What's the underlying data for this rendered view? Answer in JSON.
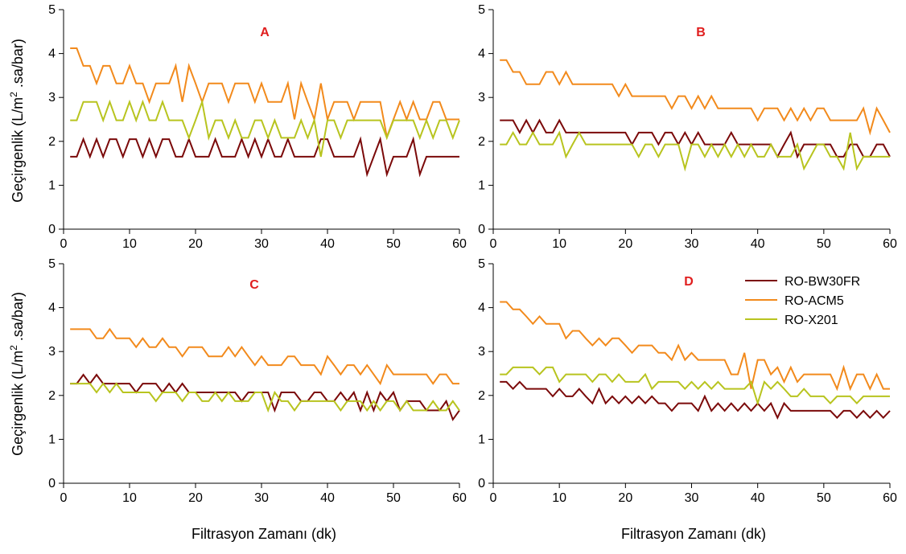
{
  "figure": {
    "xlabel": "Filtrasyon Zamanı (dk)",
    "ylabel_prefix": "Geçirgenlik (L/m",
    "ylabel_sup": "2",
    "ylabel_suffix": " .sa/bar)"
  },
  "colors": {
    "RO-BW30FR": "#7b0a0a",
    "RO-ACM5": "#f28a1c",
    "RO-X201": "#b8c41f",
    "panel_label": "#e01e1e",
    "axis": "#000000"
  },
  "legend": {
    "placement": "panel-D-top-right",
    "entries": [
      "RO-BW30FR",
      "RO-ACM5",
      "RO-X201"
    ]
  },
  "chart_data": [
    {
      "type": "line",
      "panel": "A",
      "title": "A",
      "xlim": [
        0,
        60
      ],
      "ylim": [
        0,
        5
      ],
      "xticks": [
        0,
        10,
        20,
        30,
        40,
        50,
        60
      ],
      "yticks": [
        0,
        1,
        2,
        3,
        4,
        5
      ],
      "grid": false,
      "x": [
        1,
        2,
        3,
        4,
        5,
        6,
        7,
        8,
        9,
        10,
        11,
        12,
        13,
        14,
        15,
        16,
        17,
        18,
        19,
        20,
        21,
        22,
        23,
        24,
        25,
        26,
        27,
        28,
        29,
        30,
        31,
        32,
        33,
        34,
        35,
        36,
        37,
        38,
        39,
        40,
        41,
        42,
        43,
        44,
        45,
        46,
        47,
        48,
        49,
        50,
        51,
        52,
        53,
        54,
        55,
        56,
        57,
        58,
        59,
        60
      ],
      "series": [
        {
          "name": "RO-BW30FR",
          "values": [
            1.65,
            1.65,
            2.05,
            1.65,
            2.05,
            1.65,
            2.05,
            2.05,
            1.65,
            2.05,
            2.05,
            1.65,
            2.05,
            1.65,
            2.05,
            2.05,
            1.65,
            1.65,
            2.05,
            1.65,
            1.65,
            1.65,
            2.05,
            1.65,
            1.65,
            1.65,
            2.05,
            1.65,
            2.05,
            1.65,
            2.05,
            1.65,
            1.65,
            2.05,
            1.65,
            1.65,
            1.65,
            1.65,
            2.05,
            2.05,
            1.65,
            1.65,
            1.65,
            1.65,
            2.05,
            1.25,
            1.65,
            2.05,
            1.25,
            1.65,
            1.65,
            1.65,
            2.05,
            1.25,
            1.65,
            1.65,
            1.65,
            1.65,
            1.65,
            1.65
          ]
        },
        {
          "name": "RO-ACM5",
          "values": [
            4.12,
            4.12,
            3.72,
            3.72,
            3.32,
            3.72,
            3.72,
            3.32,
            3.32,
            3.72,
            3.32,
            3.32,
            2.9,
            3.32,
            3.32,
            3.32,
            3.72,
            2.9,
            3.72,
            3.32,
            2.9,
            3.32,
            3.32,
            3.32,
            2.9,
            3.32,
            3.32,
            3.32,
            2.9,
            3.32,
            2.9,
            2.9,
            2.9,
            3.32,
            2.5,
            3.32,
            2.9,
            2.5,
            3.32,
            2.5,
            2.9,
            2.9,
            2.9,
            2.5,
            2.9,
            2.9,
            2.9,
            2.9,
            2.1,
            2.5,
            2.9,
            2.5,
            2.9,
            2.5,
            2.5,
            2.9,
            2.9,
            2.5,
            2.5,
            2.5
          ]
        },
        {
          "name": "RO-X201",
          "values": [
            2.48,
            2.48,
            2.9,
            2.9,
            2.9,
            2.48,
            2.9,
            2.48,
            2.48,
            2.9,
            2.48,
            2.9,
            2.48,
            2.48,
            2.9,
            2.48,
            2.48,
            2.48,
            2.08,
            2.48,
            2.9,
            2.08,
            2.48,
            2.48,
            2.08,
            2.48,
            2.08,
            2.08,
            2.48,
            2.48,
            2.08,
            2.48,
            2.08,
            2.08,
            2.08,
            2.48,
            2.08,
            2.48,
            1.65,
            2.48,
            2.48,
            2.08,
            2.48,
            2.48,
            2.48,
            2.48,
            2.48,
            2.48,
            2.08,
            2.48,
            2.48,
            2.48,
            2.48,
            2.08,
            2.48,
            2.08,
            2.48,
            2.48,
            2.08,
            2.48
          ]
        }
      ]
    },
    {
      "type": "line",
      "panel": "B",
      "title": "B",
      "xlim": [
        0,
        60
      ],
      "ylim": [
        0,
        5
      ],
      "xticks": [
        0,
        10,
        20,
        30,
        40,
        50,
        60
      ],
      "yticks": [
        0,
        1,
        2,
        3,
        4,
        5
      ],
      "grid": false,
      "x": [
        1,
        2,
        3,
        4,
        5,
        6,
        7,
        8,
        9,
        10,
        11,
        12,
        13,
        14,
        15,
        16,
        17,
        18,
        19,
        20,
        21,
        22,
        23,
        24,
        25,
        26,
        27,
        28,
        29,
        30,
        31,
        32,
        33,
        34,
        35,
        36,
        37,
        38,
        39,
        40,
        41,
        42,
        43,
        44,
        45,
        46,
        47,
        48,
        49,
        50,
        51,
        52,
        53,
        54,
        55,
        56,
        57,
        58,
        59,
        60
      ],
      "series": [
        {
          "name": "RO-BW30FR",
          "values": [
            2.48,
            2.48,
            2.48,
            2.2,
            2.48,
            2.2,
            2.48,
            2.2,
            2.2,
            2.48,
            2.2,
            2.2,
            2.2,
            2.2,
            2.2,
            2.2,
            2.2,
            2.2,
            2.2,
            2.2,
            1.93,
            2.2,
            2.2,
            2.2,
            1.93,
            2.2,
            2.2,
            1.93,
            2.2,
            1.93,
            2.2,
            1.93,
            1.93,
            1.93,
            1.93,
            2.2,
            1.93,
            1.93,
            1.93,
            1.93,
            1.93,
            1.93,
            1.65,
            1.93,
            2.2,
            1.65,
            1.93,
            1.93,
            1.93,
            1.93,
            1.93,
            1.65,
            1.65,
            1.93,
            1.93,
            1.65,
            1.65,
            1.93,
            1.93,
            1.65
          ]
        },
        {
          "name": "RO-ACM5",
          "values": [
            3.85,
            3.85,
            3.58,
            3.58,
            3.3,
            3.3,
            3.3,
            3.58,
            3.58,
            3.3,
            3.58,
            3.3,
            3.3,
            3.3,
            3.3,
            3.3,
            3.3,
            3.3,
            3.03,
            3.3,
            3.03,
            3.03,
            3.03,
            3.03,
            3.03,
            3.03,
            2.75,
            3.03,
            3.03,
            2.75,
            3.03,
            2.75,
            3.03,
            2.75,
            2.75,
            2.75,
            2.75,
            2.75,
            2.75,
            2.48,
            2.75,
            2.75,
            2.75,
            2.48,
            2.75,
            2.48,
            2.75,
            2.48,
            2.75,
            2.75,
            2.48,
            2.48,
            2.48,
            2.48,
            2.48,
            2.75,
            2.2,
            2.75,
            2.48,
            2.2
          ]
        },
        {
          "name": "RO-X201",
          "values": [
            1.93,
            1.93,
            2.2,
            1.93,
            1.93,
            2.2,
            1.93,
            1.93,
            1.93,
            2.2,
            1.65,
            1.93,
            2.2,
            1.93,
            1.93,
            1.93,
            1.93,
            1.93,
            1.93,
            1.93,
            1.93,
            1.65,
            1.93,
            1.93,
            1.65,
            1.93,
            1.93,
            1.93,
            1.38,
            1.93,
            1.93,
            1.65,
            1.93,
            1.65,
            1.93,
            1.65,
            1.93,
            1.65,
            1.93,
            1.65,
            1.65,
            1.93,
            1.65,
            1.65,
            1.65,
            1.93,
            1.38,
            1.65,
            1.93,
            1.93,
            1.65,
            1.65,
            1.38,
            2.2,
            1.38,
            1.65,
            1.65,
            1.65,
            1.65,
            1.65
          ]
        }
      ]
    },
    {
      "type": "line",
      "panel": "C",
      "title": "C",
      "xlim": [
        0,
        60
      ],
      "ylim": [
        0,
        5
      ],
      "xticks": [
        0,
        10,
        20,
        30,
        40,
        50,
        60
      ],
      "yticks": [
        0,
        1,
        2,
        3,
        4,
        5
      ],
      "grid": false,
      "x": [
        1,
        2,
        3,
        4,
        5,
        6,
        7,
        8,
        9,
        10,
        11,
        12,
        13,
        14,
        15,
        16,
        17,
        18,
        19,
        20,
        21,
        22,
        23,
        24,
        25,
        26,
        27,
        28,
        29,
        30,
        31,
        32,
        33,
        34,
        35,
        36,
        37,
        38,
        39,
        40,
        41,
        42,
        43,
        44,
        45,
        46,
        47,
        48,
        49,
        50,
        51,
        52,
        53,
        54,
        55,
        56,
        57,
        58,
        59,
        60
      ],
      "series": [
        {
          "name": "RO-BW30FR",
          "values": [
            2.27,
            2.27,
            2.47,
            2.27,
            2.47,
            2.27,
            2.27,
            2.27,
            2.27,
            2.27,
            2.07,
            2.27,
            2.27,
            2.27,
            2.07,
            2.27,
            2.07,
            2.27,
            2.07,
            2.07,
            2.07,
            2.07,
            2.07,
            2.07,
            2.07,
            2.07,
            1.87,
            2.07,
            2.07,
            2.07,
            2.07,
            1.66,
            2.07,
            2.07,
            2.07,
            1.87,
            1.87,
            2.07,
            2.07,
            1.87,
            1.87,
            2.07,
            1.87,
            2.07,
            1.66,
            2.07,
            1.66,
            2.07,
            1.87,
            2.07,
            1.66,
            1.87,
            1.87,
            1.87,
            1.66,
            1.66,
            1.66,
            1.87,
            1.45,
            1.66
          ]
        },
        {
          "name": "RO-ACM5",
          "values": [
            3.51,
            3.51,
            3.51,
            3.51,
            3.3,
            3.3,
            3.51,
            3.3,
            3.3,
            3.3,
            3.1,
            3.3,
            3.1,
            3.1,
            3.3,
            3.1,
            3.1,
            2.89,
            3.1,
            3.1,
            3.1,
            2.89,
            2.89,
            2.89,
            3.1,
            2.89,
            3.1,
            2.89,
            2.69,
            2.89,
            2.69,
            2.69,
            2.69,
            2.89,
            2.89,
            2.69,
            2.69,
            2.69,
            2.48,
            2.89,
            2.69,
            2.48,
            2.69,
            2.69,
            2.48,
            2.69,
            2.48,
            2.27,
            2.69,
            2.48,
            2.48,
            2.48,
            2.48,
            2.48,
            2.48,
            2.27,
            2.48,
            2.48,
            2.27,
            2.27
          ]
        },
        {
          "name": "RO-X201",
          "values": [
            2.27,
            2.27,
            2.27,
            2.27,
            2.07,
            2.27,
            2.07,
            2.27,
            2.07,
            2.07,
            2.07,
            2.07,
            2.07,
            1.87,
            2.07,
            2.07,
            2.07,
            1.87,
            2.07,
            2.07,
            1.87,
            1.87,
            2.07,
            1.87,
            2.07,
            1.87,
            1.87,
            1.87,
            2.07,
            2.07,
            1.66,
            2.07,
            1.87,
            1.87,
            1.66,
            1.87,
            1.87,
            1.87,
            1.87,
            1.87,
            1.87,
            1.66,
            1.87,
            1.87,
            1.87,
            1.66,
            1.87,
            1.66,
            1.87,
            1.87,
            1.66,
            1.87,
            1.66,
            1.66,
            1.66,
            1.87,
            1.66,
            1.66,
            1.87,
            1.66
          ]
        }
      ]
    },
    {
      "type": "line",
      "panel": "D",
      "title": "D",
      "xlim": [
        0,
        60
      ],
      "ylim": [
        0,
        5
      ],
      "xticks": [
        0,
        10,
        20,
        30,
        40,
        50,
        60
      ],
      "yticks": [
        0,
        1,
        2,
        3,
        4,
        5
      ],
      "grid": false,
      "x": [
        1,
        2,
        3,
        4,
        5,
        6,
        7,
        8,
        9,
        10,
        11,
        12,
        13,
        14,
        15,
        16,
        17,
        18,
        19,
        20,
        21,
        22,
        23,
        24,
        25,
        26,
        27,
        28,
        29,
        30,
        31,
        32,
        33,
        34,
        35,
        36,
        37,
        38,
        39,
        40,
        41,
        42,
        43,
        44,
        45,
        46,
        47,
        48,
        49,
        50,
        51,
        52,
        53,
        54,
        55,
        56,
        57,
        58,
        59,
        60
      ],
      "series": [
        {
          "name": "RO-BW30FR",
          "values": [
            2.31,
            2.31,
            2.15,
            2.31,
            2.15,
            2.15,
            2.15,
            2.15,
            1.98,
            2.15,
            1.98,
            1.98,
            2.15,
            1.98,
            1.82,
            2.15,
            1.82,
            1.98,
            1.82,
            1.98,
            1.82,
            1.98,
            1.82,
            1.98,
            1.82,
            1.82,
            1.65,
            1.82,
            1.82,
            1.82,
            1.65,
            1.98,
            1.65,
            1.82,
            1.65,
            1.82,
            1.65,
            1.82,
            1.65,
            1.82,
            1.65,
            1.82,
            1.49,
            1.82,
            1.65,
            1.65,
            1.65,
            1.65,
            1.65,
            1.65,
            1.65,
            1.49,
            1.65,
            1.65,
            1.49,
            1.65,
            1.49,
            1.65,
            1.49,
            1.65
          ]
        },
        {
          "name": "RO-ACM5",
          "values": [
            4.13,
            4.13,
            3.96,
            3.96,
            3.8,
            3.63,
            3.8,
            3.63,
            3.63,
            3.63,
            3.3,
            3.47,
            3.47,
            3.3,
            3.14,
            3.3,
            3.14,
            3.3,
            3.3,
            3.14,
            2.97,
            3.14,
            3.14,
            3.14,
            2.97,
            2.97,
            2.81,
            3.14,
            2.81,
            2.97,
            2.81,
            2.81,
            2.81,
            2.81,
            2.81,
            2.48,
            2.48,
            2.97,
            2.15,
            2.81,
            2.81,
            2.48,
            2.64,
            2.31,
            2.64,
            2.31,
            2.48,
            2.48,
            2.48,
            2.48,
            2.48,
            2.15,
            2.64,
            2.15,
            2.48,
            2.48,
            2.15,
            2.48,
            2.15,
            2.15
          ]
        },
        {
          "name": "RO-X201",
          "values": [
            2.48,
            2.48,
            2.64,
            2.64,
            2.64,
            2.64,
            2.48,
            2.64,
            2.64,
            2.31,
            2.48,
            2.48,
            2.48,
            2.48,
            2.31,
            2.48,
            2.48,
            2.31,
            2.48,
            2.31,
            2.31,
            2.31,
            2.48,
            2.15,
            2.31,
            2.31,
            2.31,
            2.31,
            2.15,
            2.31,
            2.15,
            2.31,
            2.15,
            2.31,
            2.15,
            2.15,
            2.15,
            2.15,
            2.31,
            1.82,
            2.31,
            2.15,
            2.31,
            2.15,
            1.98,
            1.98,
            2.15,
            1.98,
            1.98,
            1.98,
            1.82,
            1.98,
            1.98,
            1.98,
            1.82,
            1.98,
            1.98,
            1.98,
            1.98,
            1.98
          ]
        }
      ]
    }
  ]
}
